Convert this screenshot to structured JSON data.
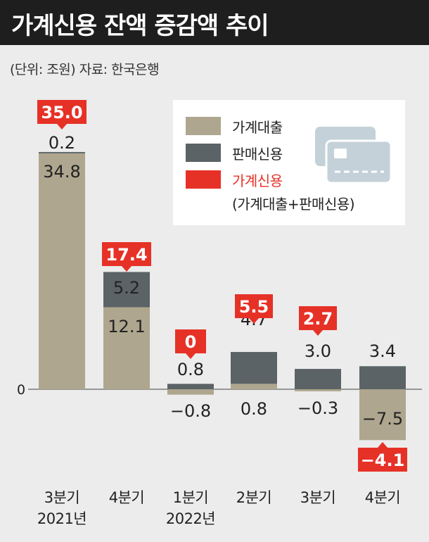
{
  "title": "가계신용 잔액 증감액 추이",
  "unit_note": "(단위: 조원)  자료: 한국은행",
  "colors": {
    "loans": "#aea68e",
    "sales_credit": "#5b6366",
    "total": "#e63127",
    "card_icon": "#c4d1d9"
  },
  "legend": {
    "loans": "가계대출",
    "sales_credit": "판매신용",
    "total": "가계신용",
    "total_note": "(가계대출+판매신용)"
  },
  "chart_data": {
    "type": "bar",
    "stacked": true,
    "categories": [
      [
        "3분기",
        "2021년"
      ],
      [
        "4분기",
        ""
      ],
      [
        "1분기",
        "2022년"
      ],
      [
        "2분기",
        ""
      ],
      [
        "3분기",
        ""
      ],
      [
        "4분기",
        ""
      ]
    ],
    "series": [
      {
        "name": "가계대출",
        "values": [
          34.8,
          12.1,
          -0.8,
          0.8,
          -0.3,
          -7.5
        ]
      },
      {
        "name": "판매신용",
        "values": [
          0.2,
          5.2,
          0.8,
          4.7,
          3.0,
          3.4
        ]
      }
    ],
    "totals": [
      35.0,
      17.4,
      0,
      5.5,
      2.7,
      -4.1
    ],
    "loan_labels": [
      "34.8",
      "12.1",
      "−0.8",
      "0.8",
      "−0.3",
      "−7.5"
    ],
    "credit_labels": [
      "0.2",
      "5.2",
      "0.8",
      "4.7",
      "3.0",
      "3.4"
    ],
    "total_labels": [
      "35.0",
      "17.4",
      "0",
      "5.5",
      "2.7",
      "−4.1"
    ],
    "axis_zero_label": "0",
    "legend_position": "top-right"
  }
}
